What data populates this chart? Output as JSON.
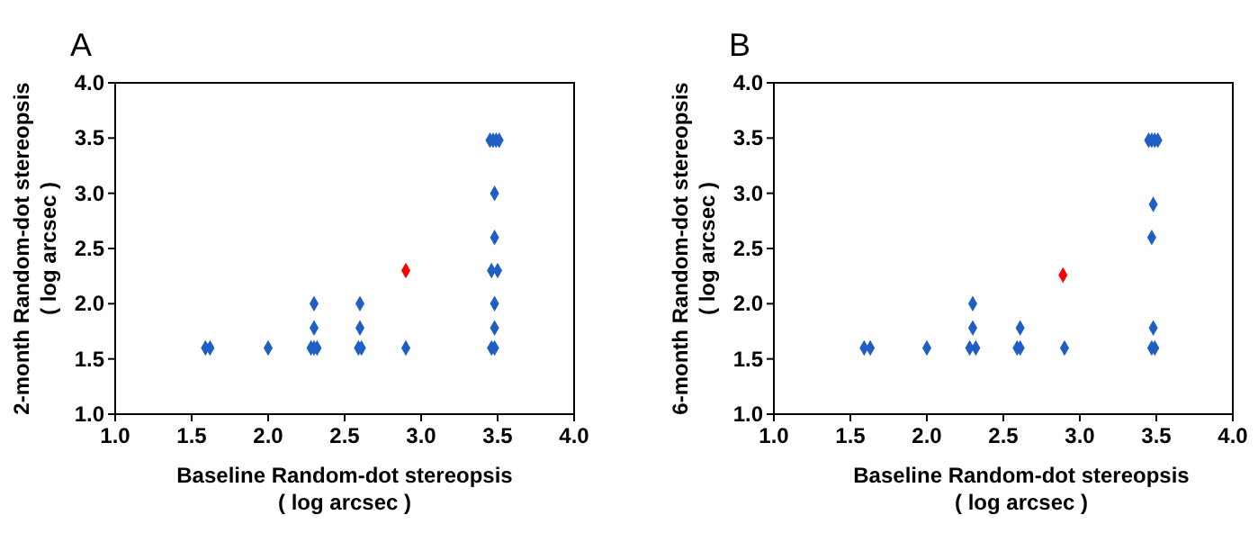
{
  "chart_data": [
    {
      "type": "scatter",
      "title": "A",
      "xlabel": "Baseline Random-dot stereopsis\n( log arcsec )",
      "ylabel": "2-month Random-dot stereopsis\n( log arcsec )",
      "marker": "diamond",
      "grid": false,
      "xlim": [
        1.0,
        4.0
      ],
      "ylim": [
        1.0,
        4.0
      ],
      "xticks": [
        {
          "value": 1,
          "label": "1.0"
        },
        {
          "value": 1.5,
          "label": "1.5"
        },
        {
          "value": 2,
          "label": "2.0"
        },
        {
          "value": 2.5,
          "label": "2.5"
        },
        {
          "value": 3,
          "label": "3.0"
        },
        {
          "value": 3.5,
          "label": "3.5"
        },
        {
          "value": 4,
          "label": "4.0"
        }
      ],
      "yticks": [
        {
          "value": 1,
          "label": "1.0"
        },
        {
          "value": 1.5,
          "label": "1.5"
        },
        {
          "value": 2,
          "label": "2.0"
        },
        {
          "value": 2.5,
          "label": "2.5"
        },
        {
          "value": 3,
          "label": "3.0"
        },
        {
          "value": 3.5,
          "label": "3.5"
        },
        {
          "value": 4,
          "label": "4.0"
        }
      ],
      "series": [
        {
          "color": "#1f5fc4",
          "x": [
            1.59,
            1.62,
            2.0,
            2.28,
            2.3,
            2.32,
            2.3,
            2.3,
            2.59,
            2.61,
            2.6,
            2.6,
            2.9,
            3.46,
            3.48,
            3.48,
            3.48,
            3.46,
            3.5,
            3.48,
            3.48,
            3.45,
            3.47,
            3.49,
            3.51
          ],
          "values": [
            1.6,
            1.6,
            1.6,
            1.6,
            1.6,
            1.6,
            1.78,
            2.0,
            1.6,
            1.6,
            1.78,
            2.0,
            1.6,
            1.6,
            1.6,
            1.78,
            2.0,
            2.3,
            2.3,
            2.6,
            3.0,
            3.48,
            3.48,
            3.48,
            3.48
          ]
        },
        {
          "color": "#ff0000",
          "x": [
            2.9
          ],
          "values": [
            2.3
          ]
        }
      ]
    },
    {
      "type": "scatter",
      "title": "B",
      "xlabel": "Baseline Random-dot stereopsis\n( log arcsec )",
      "ylabel": "6-month Random-dot stereopsis\n( log arcsec )",
      "marker": "diamond",
      "grid": false,
      "xlim": [
        1.0,
        4.0
      ],
      "ylim": [
        1.0,
        4.0
      ],
      "xticks": [
        {
          "value": 1,
          "label": "1.0"
        },
        {
          "value": 1.5,
          "label": "1.5"
        },
        {
          "value": 2,
          "label": "2.0"
        },
        {
          "value": 2.5,
          "label": "2.5"
        },
        {
          "value": 3,
          "label": "3.0"
        },
        {
          "value": 3.5,
          "label": "3.5"
        },
        {
          "value": 4,
          "label": "4.0"
        }
      ],
      "yticks": [
        {
          "value": 1,
          "label": "1.0"
        },
        {
          "value": 1.5,
          "label": "1.5"
        },
        {
          "value": 2,
          "label": "2.0"
        },
        {
          "value": 2.5,
          "label": "2.5"
        },
        {
          "value": 3,
          "label": "3.0"
        },
        {
          "value": 3.5,
          "label": "3.5"
        },
        {
          "value": 4,
          "label": "4.0"
        }
      ],
      "series": [
        {
          "color": "#1f5fc4",
          "x": [
            1.59,
            1.63,
            2.0,
            2.28,
            2.32,
            2.3,
            2.3,
            2.59,
            2.61,
            2.61,
            2.9,
            3.47,
            3.49,
            3.48,
            3.47,
            3.48,
            3.45,
            3.47,
            3.49,
            3.51
          ],
          "values": [
            1.6,
            1.6,
            1.6,
            1.6,
            1.6,
            1.78,
            2.0,
            1.6,
            1.6,
            1.78,
            1.6,
            1.6,
            1.6,
            1.78,
            2.6,
            2.9,
            3.48,
            3.48,
            3.48,
            3.48
          ]
        },
        {
          "color": "#ff0000",
          "x": [
            2.89
          ],
          "values": [
            2.26
          ]
        }
      ]
    }
  ]
}
